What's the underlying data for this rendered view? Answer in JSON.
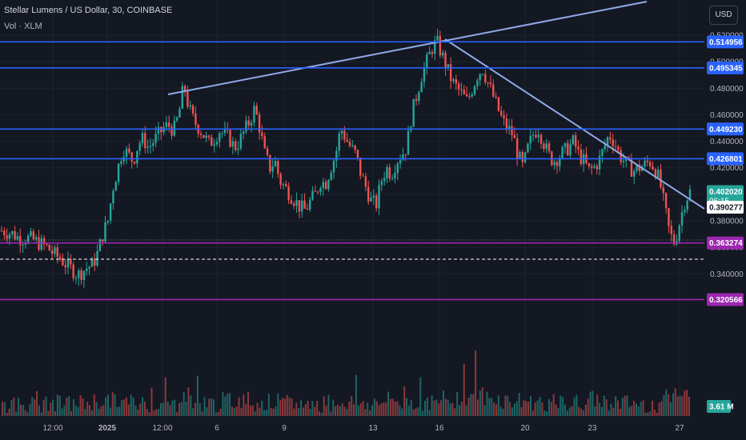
{
  "header": {
    "title": "Stellar Lumens / US Dollar, 30, COINBASE",
    "volume_label": "Vol · XLM",
    "currency_button": "USD"
  },
  "chart_data": {
    "type": "candlestick",
    "y_axis": {
      "range": [
        0.3085,
        0.5255
      ],
      "ticks": [
        "0.520000",
        "0.500000",
        "0.480000",
        "0.460000",
        "0.440000",
        "0.420000",
        "0.400000",
        "0.380000",
        "0.360000",
        "0.340000"
      ]
    },
    "x_axis": {
      "ticks": [
        "12:00",
        "2025",
        "12:00",
        "6",
        "9",
        "13",
        "16",
        "20",
        "23",
        "27"
      ]
    },
    "horizontal_levels": [
      {
        "value": 0.514956,
        "label": "0.514956",
        "color": "#2962ff"
      },
      {
        "value": 0.495345,
        "label": "0.495345",
        "color": "#2962ff"
      },
      {
        "value": 0.44923,
        "label": "0.449230",
        "color": "#2962ff"
      },
      {
        "value": 0.426801,
        "label": "0.426801",
        "color": "#2962ff"
      },
      {
        "value": 0.363274,
        "label": "0.363274",
        "color": "#9c27b0"
      },
      {
        "value": 0.320566,
        "label": "0.320566",
        "color": "#9c27b0"
      }
    ],
    "current_price": {
      "label": "0.402020",
      "countdown": "06:15",
      "color": "#26a69a"
    },
    "crosshair_price": {
      "label": "0.390277"
    },
    "volume_readout": {
      "label": "3.61 M",
      "color": "#26a69a"
    },
    "price_path": [
      [
        0.3725,
        0.3715,
        0.3705,
        0.368,
        0.3665,
        0.367,
        0.366,
        0.364,
        0.362,
        0.36,
        0.356,
        0.353,
        0.35,
        0.346,
        0.343,
        0.339
      ],
      [
        0.342,
        0.345,
        0.347,
        0.356,
        0.37,
        0.38,
        0.405,
        0.42,
        0.435,
        0.43,
        0.425,
        0.438,
        0.442,
        0.435,
        0.44,
        0.445
      ],
      [
        0.45,
        0.452,
        0.448,
        0.46,
        0.483,
        0.465,
        0.455,
        0.45,
        0.444,
        0.438,
        0.442,
        0.448,
        0.445,
        0.442,
        0.435,
        0.44
      ],
      [
        0.448,
        0.455,
        0.465,
        0.45,
        0.43,
        0.42,
        0.425,
        0.41,
        0.405,
        0.4,
        0.395,
        0.39,
        0.388,
        0.395,
        0.4,
        0.41
      ],
      [
        0.408,
        0.42,
        0.43,
        0.45,
        0.442,
        0.435,
        0.43,
        0.415,
        0.405,
        0.395,
        0.392,
        0.41,
        0.42,
        0.415,
        0.425,
        0.43
      ],
      [
        0.435,
        0.46,
        0.475,
        0.49,
        0.5,
        0.51,
        0.515,
        0.505,
        0.495,
        0.485,
        0.48,
        0.475,
        0.47,
        0.48,
        0.49,
        0.495
      ],
      [
        0.485,
        0.475,
        0.465,
        0.455,
        0.45,
        0.445,
        0.43,
        0.42,
        0.435,
        0.445,
        0.45,
        0.44,
        0.43,
        0.425,
        0.428,
        0.432
      ],
      [
        0.435,
        0.44,
        0.43,
        0.425,
        0.418,
        0.42,
        0.425,
        0.435,
        0.445,
        0.44,
        0.43,
        0.425,
        0.42,
        0.418,
        0.42,
        0.422
      ],
      [
        0.425,
        0.42,
        0.41,
        0.39,
        0.37,
        0.363,
        0.38,
        0.395,
        0.402
      ]
    ],
    "volume_profile": [
      0.12,
      0.15,
      0.1,
      0.18,
      0.14,
      0.2,
      0.25,
      0.3,
      0.22,
      0.18,
      0.16,
      0.12,
      0.55,
      0.2,
      0.15,
      0.28,
      0.35,
      0.18,
      0.22,
      0.16,
      0.14,
      0.12,
      0.2,
      0.24,
      0.18,
      0.15,
      0.3,
      0.25,
      0.22,
      0.18,
      0.35,
      0.45,
      0.6,
      0.4,
      0.3,
      0.28,
      0.22,
      0.18,
      0.15,
      0.2,
      0.35,
      0.25,
      0.18,
      0.15,
      0.12,
      0.4,
      0.8,
      0.3
    ]
  }
}
